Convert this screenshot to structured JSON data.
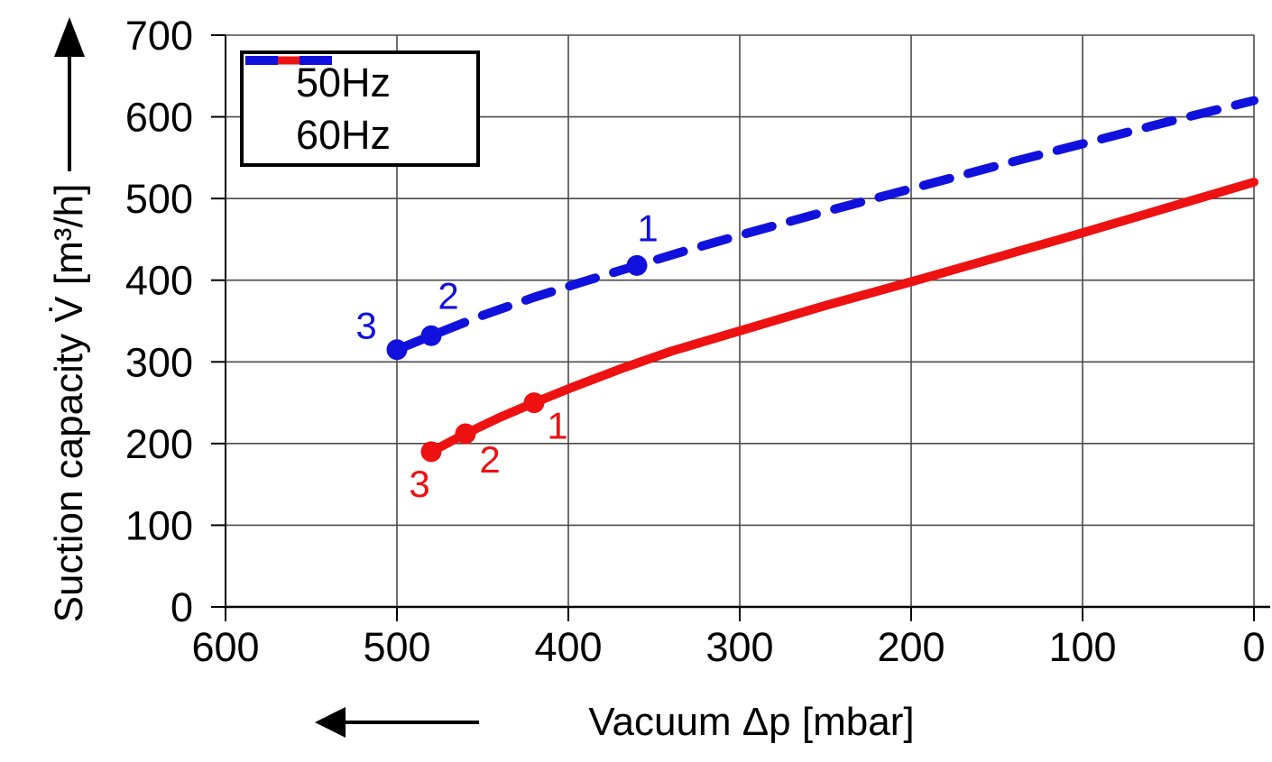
{
  "chart_data": {
    "type": "line",
    "title": "",
    "xlabel": "Vacuum  Δp [mbar]",
    "ylabel": "Suction capacity V̇ [m³/h]",
    "x_axis_reversed": true,
    "xlim": [
      600,
      0
    ],
    "ylim": [
      0,
      700
    ],
    "xticks": [
      600,
      500,
      400,
      300,
      200,
      100,
      0
    ],
    "yticks": [
      0,
      100,
      200,
      300,
      400,
      500,
      600,
      700
    ],
    "grid": true,
    "legend_position": "top-left",
    "series": [
      {
        "name": "50Hz",
        "color": "#ee1111",
        "style": "solid",
        "x": [
          480,
          460,
          440,
          420,
          400,
          370,
          340,
          300,
          250,
          200,
          150,
          100,
          50,
          0
        ],
        "y": [
          190,
          212,
          232,
          250,
          267,
          291,
          313,
          338,
          369,
          398,
          428,
          458,
          489,
          520
        ],
        "marked_points": [
          {
            "x": 420,
            "y": 250,
            "label": "1",
            "dx": 26,
            "dy": 26
          },
          {
            "x": 460,
            "y": 212,
            "label": "2",
            "dx": 27,
            "dy": 29
          },
          {
            "x": 480,
            "y": 190,
            "label": "3",
            "dx": -13,
            "dy": 36
          }
        ]
      },
      {
        "name": "60Hz",
        "color": "#1111dd",
        "style": "dashed",
        "x": [
          500,
          480,
          450,
          420,
          390,
          360,
          330,
          300,
          250,
          200,
          150,
          100,
          50,
          0
        ],
        "y": [
          315,
          332,
          357,
          379,
          399,
          418,
          437,
          455,
          484,
          512,
          540,
          567,
          594,
          620
        ],
        "marked_points": [
          {
            "x": 360,
            "y": 418,
            "label": "1",
            "dx": 12,
            "dy": -41
          },
          {
            "x": 480,
            "y": 332,
            "label": "2",
            "dx": 19,
            "dy": -44
          },
          {
            "x": 500,
            "y": 315,
            "label": "3",
            "dx": -34,
            "dy": -26
          }
        ]
      }
    ]
  }
}
